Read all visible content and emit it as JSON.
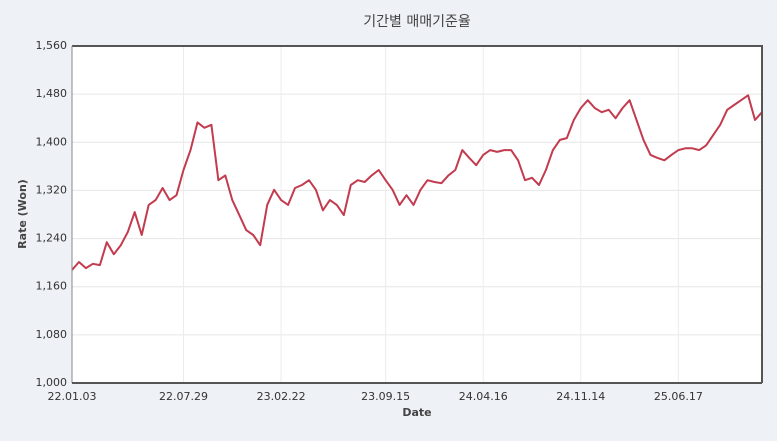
{
  "chart_data": {
    "type": "line",
    "title": "기간별 매매기준율",
    "x_label": "Date",
    "y_label": "Rate (Won)",
    "categories": [
      "22.01.03",
      null,
      null,
      null,
      null,
      null,
      null,
      null,
      null,
      null,
      null,
      null,
      null,
      null,
      null,
      null,
      "22.07.29",
      null,
      null,
      null,
      null,
      null,
      null,
      null,
      null,
      null,
      null,
      null,
      null,
      null,
      "23.02.22",
      null,
      null,
      null,
      null,
      null,
      null,
      null,
      null,
      null,
      null,
      null,
      null,
      null,
      null,
      "23.09.15",
      null,
      null,
      null,
      null,
      null,
      null,
      null,
      null,
      null,
      null,
      null,
      null,
      null,
      "24.04.16",
      null,
      null,
      null,
      null,
      null,
      null,
      null,
      null,
      null,
      null,
      null,
      null,
      null,
      "24.11.14",
      null,
      null,
      null,
      null,
      null,
      null,
      null,
      null,
      null,
      null,
      null,
      null,
      null,
      "25.06.17",
      null,
      null,
      null,
      null,
      null,
      null,
      null,
      null,
      null,
      null,
      null,
      null
    ],
    "series": [
      {
        "name": "Rate",
        "color": "#c23b4e",
        "values": [
          1188,
          1201,
          1191,
          1198,
          1196,
          1234,
          1214,
          1229,
          1251,
          1284,
          1246,
          1296,
          1304,
          1324,
          1304,
          1312,
          1354,
          1387,
          1433,
          1424,
          1429,
          1337,
          1345,
          1304,
          1279,
          1254,
          1246,
          1229,
          1296,
          1321,
          1304,
          1296,
          1324,
          1329,
          1337,
          1321,
          1287,
          1304,
          1296,
          1279,
          1329,
          1337,
          1334,
          1345,
          1354,
          1337,
          1321,
          1296,
          1312,
          1296,
          1321,
          1337,
          1334,
          1332,
          1345,
          1354,
          1387,
          1374,
          1362,
          1379,
          1387,
          1384,
          1387,
          1387,
          1370,
          1337,
          1341,
          1329,
          1354,
          1387,
          1404,
          1407,
          1437,
          1457,
          1470,
          1457,
          1450,
          1454,
          1440,
          1457,
          1470,
          1437,
          1404,
          1379,
          1374,
          1370,
          1379,
          1387,
          1390,
          1390,
          1387,
          1395,
          1412,
          1429,
          1454,
          1462,
          1470,
          1478,
          1437,
          1450
        ]
      }
    ],
    "ylim": [
      1000,
      1560
    ],
    "yticks": [
      {
        "value": 1000,
        "label": "1,000"
      },
      {
        "value": 1080,
        "label": "1,080"
      },
      {
        "value": 1160,
        "label": "1,160"
      },
      {
        "value": 1240,
        "label": "1,240"
      },
      {
        "value": 1320,
        "label": "1,320"
      },
      {
        "value": 1400,
        "label": "1,400"
      },
      {
        "value": 1480,
        "label": "1,480"
      },
      {
        "value": 1560,
        "label": "1,560"
      }
    ],
    "grid": true
  }
}
